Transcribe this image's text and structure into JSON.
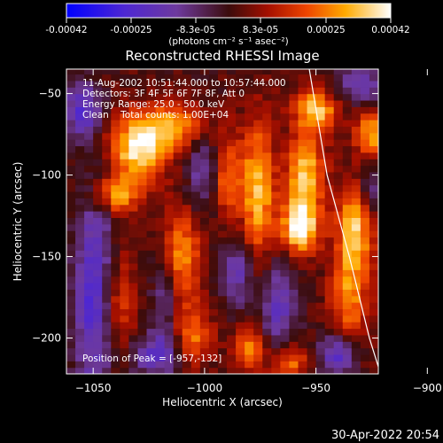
{
  "colorbar": {
    "ticks": [
      "-0.00042",
      "-0.00025",
      "-8.3e-05",
      "8.3e-05",
      "0.00025",
      "0.00042"
    ],
    "unit": "(photons cm⁻² s⁻¹ asec⁻²)"
  },
  "chart_data": {
    "type": "heatmap",
    "title": "Reconstructed RHESSI Image",
    "xlabel": "Heliocentric X (arcsec)",
    "ylabel": "Heliocentric Y (arcsec)",
    "xlim": [
      -1062,
      -922
    ],
    "ylim": [
      -222,
      -35
    ],
    "x_ticks": [
      -1050,
      -1000,
      -950,
      -900
    ],
    "y_ticks": [
      -50,
      -100,
      -150,
      -200
    ],
    "value_range": [
      -0.00042,
      0.00042
    ],
    "annotations": [
      "11-Aug-2002 10:51:44.000 to 10:57:44.000",
      "Detectors: 3F 4F 5F 6F 7F 8F, Att 0",
      "Energy Range: 25.0 - 50.0 keV",
      "Clean    Total counts: 1.00E+04"
    ],
    "peak_label": "Position of Peak = [-957,-132]",
    "peak": {
      "x": -957,
      "y": -132
    },
    "limb_curve": [
      [
        -953,
        -35
      ],
      [
        -945,
        -100
      ],
      [
        -935,
        -150
      ],
      [
        -926,
        -200
      ],
      [
        -921,
        -222
      ]
    ],
    "hot_spots": [
      {
        "x": -1030,
        "y": -83,
        "amp": 0.9,
        "sx": 9,
        "sy": 14
      },
      {
        "x": -1012,
        "y": -70,
        "amp": 0.65,
        "sx": 10,
        "sy": 10
      },
      {
        "x": -1040,
        "y": -112,
        "amp": 0.7,
        "sx": 7,
        "sy": 8
      },
      {
        "x": -1040,
        "y": -180,
        "amp": 0.6,
        "sx": 6,
        "sy": 30
      },
      {
        "x": -1010,
        "y": -150,
        "amp": 0.6,
        "sx": 6,
        "sy": 22
      },
      {
        "x": -1005,
        "y": -200,
        "amp": 0.55,
        "sx": 6,
        "sy": 12
      },
      {
        "x": -990,
        "y": -100,
        "amp": 0.6,
        "sx": 5,
        "sy": 18
      },
      {
        "x": -976,
        "y": -110,
        "amp": 0.75,
        "sx": 5,
        "sy": 30
      },
      {
        "x": -980,
        "y": -205,
        "amp": 0.55,
        "sx": 5,
        "sy": 10
      },
      {
        "x": -957,
        "y": -132,
        "amp": 1.0,
        "sx": 6,
        "sy": 11
      },
      {
        "x": -955,
        "y": -100,
        "amp": 0.8,
        "sx": 6,
        "sy": 16
      },
      {
        "x": -950,
        "y": -60,
        "amp": 0.75,
        "sx": 7,
        "sy": 10
      },
      {
        "x": -932,
        "y": -130,
        "amp": 0.75,
        "sx": 6,
        "sy": 18
      },
      {
        "x": -935,
        "y": -175,
        "amp": 0.6,
        "sx": 6,
        "sy": 22
      },
      {
        "x": -925,
        "y": -75,
        "amp": 0.7,
        "sx": 5,
        "sy": 10
      },
      {
        "x": -910,
        "y": -120,
        "amp": 0.8,
        "sx": 6,
        "sy": 22
      },
      {
        "x": -912,
        "y": -165,
        "amp": 0.75,
        "sx": 5,
        "sy": 18
      },
      {
        "x": -900,
        "y": -205,
        "amp": 0.55,
        "sx": 6,
        "sy": 10
      },
      {
        "x": -962,
        "y": -215,
        "amp": 0.55,
        "sx": 6,
        "sy": 8
      }
    ],
    "cold_spots": [
      {
        "x": -1048,
        "y": -175,
        "amp": 0.8,
        "sx": 7,
        "sy": 45
      },
      {
        "x": -1055,
        "y": -60,
        "amp": 0.6,
        "sx": 6,
        "sy": 12
      },
      {
        "x": -1000,
        "y": -95,
        "amp": 0.45,
        "sx": 6,
        "sy": 20
      },
      {
        "x": -1022,
        "y": -210,
        "amp": 0.5,
        "sx": 10,
        "sy": 10
      },
      {
        "x": -985,
        "y": -160,
        "amp": 0.45,
        "sx": 5,
        "sy": 15
      },
      {
        "x": -967,
        "y": -180,
        "amp": 0.5,
        "sx": 6,
        "sy": 20
      },
      {
        "x": -925,
        "y": -110,
        "amp": 0.45,
        "sx": 4,
        "sy": 15
      },
      {
        "x": -940,
        "y": -210,
        "amp": 0.65,
        "sx": 6,
        "sy": 10
      },
      {
        "x": -930,
        "y": -45,
        "amp": 0.5,
        "sx": 8,
        "sy": 8
      },
      {
        "x": -1018,
        "y": -175,
        "amp": 0.4,
        "sx": 4,
        "sy": 18
      }
    ]
  },
  "footer": {
    "timestamp": "30-Apr-2022 20:54"
  },
  "colors": {
    "background": "#000000",
    "foreground": "#ffffff",
    "limb": "#ffffff"
  }
}
